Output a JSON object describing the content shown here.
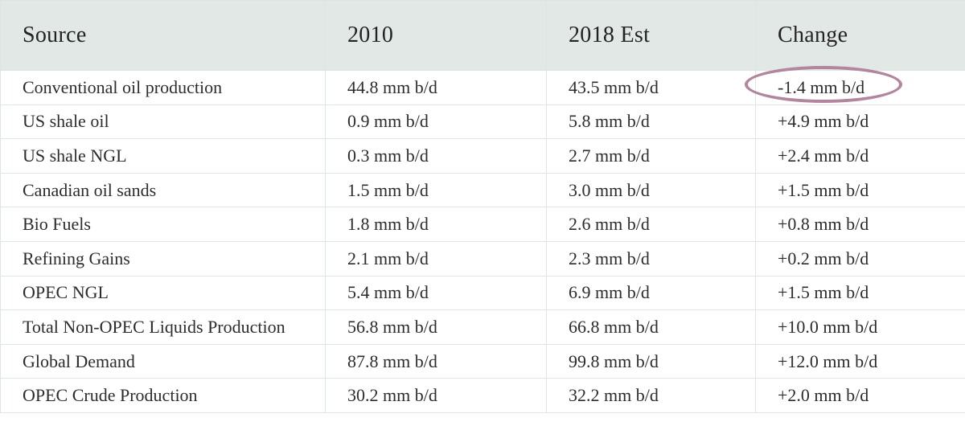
{
  "table": {
    "headers": [
      "Source",
      "2010",
      "2018 Est",
      "Change"
    ],
    "rows": [
      [
        "Conventional oil production",
        "44.8 mm b/d",
        "43.5 mm b/d",
        "-1.4 mm b/d"
      ],
      [
        "US shale oil",
        "0.9 mm b/d",
        "5.8 mm b/d",
        "+4.9 mm b/d"
      ],
      [
        "US shale NGL",
        "0.3 mm b/d",
        "2.7 mm b/d",
        "+2.4 mm b/d"
      ],
      [
        "Canadian oil sands",
        "1.5 mm b/d",
        "3.0 mm b/d",
        "+1.5 mm b/d"
      ],
      [
        "Bio Fuels",
        "1.8 mm b/d",
        "2.6 mm b/d",
        "+0.8 mm b/d"
      ],
      [
        "Refining Gains",
        "2.1 mm b/d",
        "2.3 mm b/d",
        "+0.2 mm b/d"
      ],
      [
        "OPEC NGL",
        "5.4 mm b/d",
        "6.9 mm b/d",
        "+1.5 mm b/d"
      ],
      [
        "Total Non-OPEC Liquids Production",
        "56.8 mm b/d",
        "66.8 mm b/d",
        "+10.0 mm b/d"
      ],
      [
        "Global Demand",
        "87.8 mm b/d",
        "99.8 mm b/d",
        "+12.0 mm b/d"
      ],
      [
        "OPEC Crude Production",
        "30.2 mm b/d",
        "32.2 mm b/d",
        "+2.0 mm b/d"
      ]
    ]
  },
  "colors": {
    "header_bg": "#e2e8e5",
    "grid_lines": "#dfe6e2",
    "highlight_ring": "#b3869f"
  }
}
